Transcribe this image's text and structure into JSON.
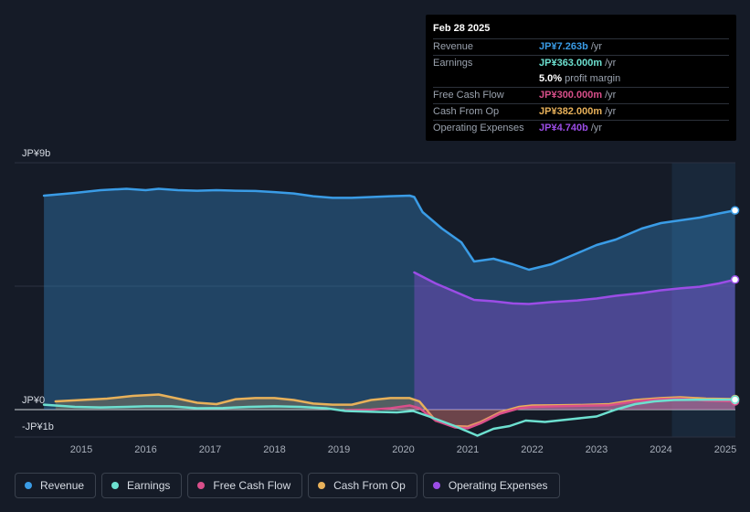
{
  "tooltip": {
    "date": "Feb 28 2025",
    "rows": [
      {
        "label": "Revenue",
        "value": "JP¥7.263b",
        "unit": "/yr",
        "color": "#3a9ce6"
      },
      {
        "label": "Earnings",
        "value": "JP¥363.000m",
        "unit": "/yr",
        "color": "#6de0d0"
      },
      {
        "label": "",
        "value": "5.0%",
        "unit": "profit margin",
        "color": "#ffffff"
      },
      {
        "label": "Free Cash Flow",
        "value": "JP¥300.000m",
        "unit": "/yr",
        "color": "#d94f8a"
      },
      {
        "label": "Cash From Op",
        "value": "JP¥382.000m",
        "unit": "/yr",
        "color": "#e8b15a"
      },
      {
        "label": "Operating Expenses",
        "value": "JP¥4.740b",
        "unit": "/yr",
        "color": "#9b4de6"
      }
    ]
  },
  "legend": [
    {
      "label": "Revenue",
      "color": "#3a9ce6"
    },
    {
      "label": "Earnings",
      "color": "#6de0d0"
    },
    {
      "label": "Free Cash Flow",
      "color": "#d94f8a"
    },
    {
      "label": "Cash From Op",
      "color": "#e8b15a"
    },
    {
      "label": "Operating Expenses",
      "color": "#9b4de6"
    }
  ],
  "chart_data": {
    "type": "area",
    "title": "",
    "xlabel": "",
    "ylabel": "",
    "y_unit": "JP¥ billions",
    "ylim": [
      -1,
      9
    ],
    "y_tick_labels": [
      {
        "value": 9,
        "label": "JP¥9b"
      },
      {
        "value": 0,
        "label": "JP¥0"
      },
      {
        "value": -1,
        "label": "-JP¥1b"
      }
    ],
    "x_tick_labels": [
      "2015",
      "2016",
      "2017",
      "2018",
      "2019",
      "2020",
      "2021",
      "2022",
      "2023",
      "2024",
      "2025"
    ],
    "xlim": [
      2014.0,
      2025.17
    ],
    "highlight_from": 2024.17,
    "series": [
      {
        "name": "Revenue",
        "color": "#3a9ce6",
        "fill": true,
        "x": [
          2014.42,
          2014.9,
          2015.3,
          2015.7,
          2016.0,
          2016.2,
          2016.5,
          2016.8,
          2017.1,
          2017.4,
          2017.7,
          2018.0,
          2018.3,
          2018.6,
          2018.9,
          2019.2,
          2019.5,
          2019.8,
          2020.1,
          2020.17,
          2020.3,
          2020.6,
          2020.9,
          2021.1,
          2021.4,
          2021.7,
          2021.95,
          2022.3,
          2022.7,
          2023.0,
          2023.3,
          2023.7,
          2024.0,
          2024.3,
          2024.6,
          2024.9,
          2025.15
        ],
        "values": [
          7.8,
          7.9,
          8.0,
          8.05,
          8.0,
          8.05,
          8.0,
          7.98,
          8.0,
          7.98,
          7.97,
          7.93,
          7.88,
          7.78,
          7.72,
          7.72,
          7.75,
          7.78,
          7.8,
          7.75,
          7.2,
          6.6,
          6.1,
          5.4,
          5.5,
          5.3,
          5.1,
          5.3,
          5.7,
          6.0,
          6.2,
          6.6,
          6.8,
          6.9,
          7.0,
          7.15,
          7.263
        ]
      },
      {
        "name": "Operating Expenses",
        "color": "#9b4de6",
        "fill": true,
        "x": [
          2020.17,
          2020.5,
          2020.8,
          2021.1,
          2021.4,
          2021.7,
          2021.95,
          2022.3,
          2022.7,
          2023.0,
          2023.3,
          2023.7,
          2024.0,
          2024.3,
          2024.6,
          2024.9,
          2025.15
        ],
        "values": [
          5.0,
          4.6,
          4.3,
          4.0,
          3.95,
          3.87,
          3.85,
          3.92,
          3.98,
          4.05,
          4.15,
          4.25,
          4.35,
          4.42,
          4.48,
          4.6,
          4.74
        ]
      },
      {
        "name": "Cash From Op",
        "color": "#e8b15a",
        "fill": true,
        "x": [
          2014.6,
          2015.0,
          2015.4,
          2015.8,
          2016.2,
          2016.5,
          2016.8,
          2017.1,
          2017.4,
          2017.7,
          2018.0,
          2018.3,
          2018.6,
          2018.9,
          2019.2,
          2019.5,
          2019.8,
          2020.1,
          2020.25,
          2020.5,
          2020.8,
          2021.0,
          2021.2,
          2021.5,
          2021.8,
          2022.0,
          2022.4,
          2022.8,
          2023.2,
          2023.6,
          2024.0,
          2024.3,
          2024.7,
          2025.15
        ],
        "values": [
          0.3,
          0.35,
          0.4,
          0.5,
          0.55,
          0.4,
          0.25,
          0.2,
          0.38,
          0.42,
          0.42,
          0.35,
          0.22,
          0.18,
          0.18,
          0.35,
          0.42,
          0.42,
          0.3,
          -0.4,
          -0.6,
          -0.62,
          -0.45,
          -0.1,
          0.1,
          0.15,
          0.16,
          0.17,
          0.2,
          0.35,
          0.42,
          0.45,
          0.4,
          0.382
        ]
      },
      {
        "name": "Free Cash Flow",
        "color": "#d94f8a",
        "fill": true,
        "x": [
          2019.1,
          2019.5,
          2019.8,
          2020.1,
          2020.25,
          2020.5,
          2020.8,
          2021.0,
          2021.2,
          2021.5,
          2021.8,
          2022.0,
          2022.4,
          2022.8,
          2023.2,
          2023.6,
          2024.0,
          2024.3,
          2024.7,
          2025.15
        ],
        "values": [
          -0.02,
          0.0,
          0.05,
          0.15,
          0.05,
          -0.4,
          -0.65,
          -0.68,
          -0.5,
          -0.15,
          0.05,
          0.1,
          0.12,
          0.14,
          0.16,
          0.3,
          0.38,
          0.4,
          0.33,
          0.3
        ]
      },
      {
        "name": "Earnings",
        "color": "#6de0d0",
        "fill": false,
        "x": [
          2014.42,
          2014.9,
          2015.3,
          2015.7,
          2016.0,
          2016.4,
          2016.8,
          2017.2,
          2017.6,
          2018.0,
          2018.4,
          2018.8,
          2019.1,
          2019.5,
          2019.9,
          2020.15,
          2020.4,
          2020.8,
          2021.0,
          2021.15,
          2021.4,
          2021.65,
          2021.9,
          2022.2,
          2022.6,
          2023.0,
          2023.3,
          2023.6,
          2023.9,
          2024.2,
          2024.6,
          2025.15
        ],
        "values": [
          0.18,
          0.1,
          0.08,
          0.1,
          0.12,
          0.12,
          0.05,
          0.06,
          0.1,
          0.12,
          0.1,
          0.05,
          -0.05,
          -0.08,
          -0.1,
          -0.05,
          -0.25,
          -0.6,
          -0.8,
          -0.95,
          -0.7,
          -0.6,
          -0.4,
          -0.45,
          -0.35,
          -0.25,
          0.0,
          0.2,
          0.3,
          0.35,
          0.36,
          0.363
        ]
      }
    ]
  }
}
